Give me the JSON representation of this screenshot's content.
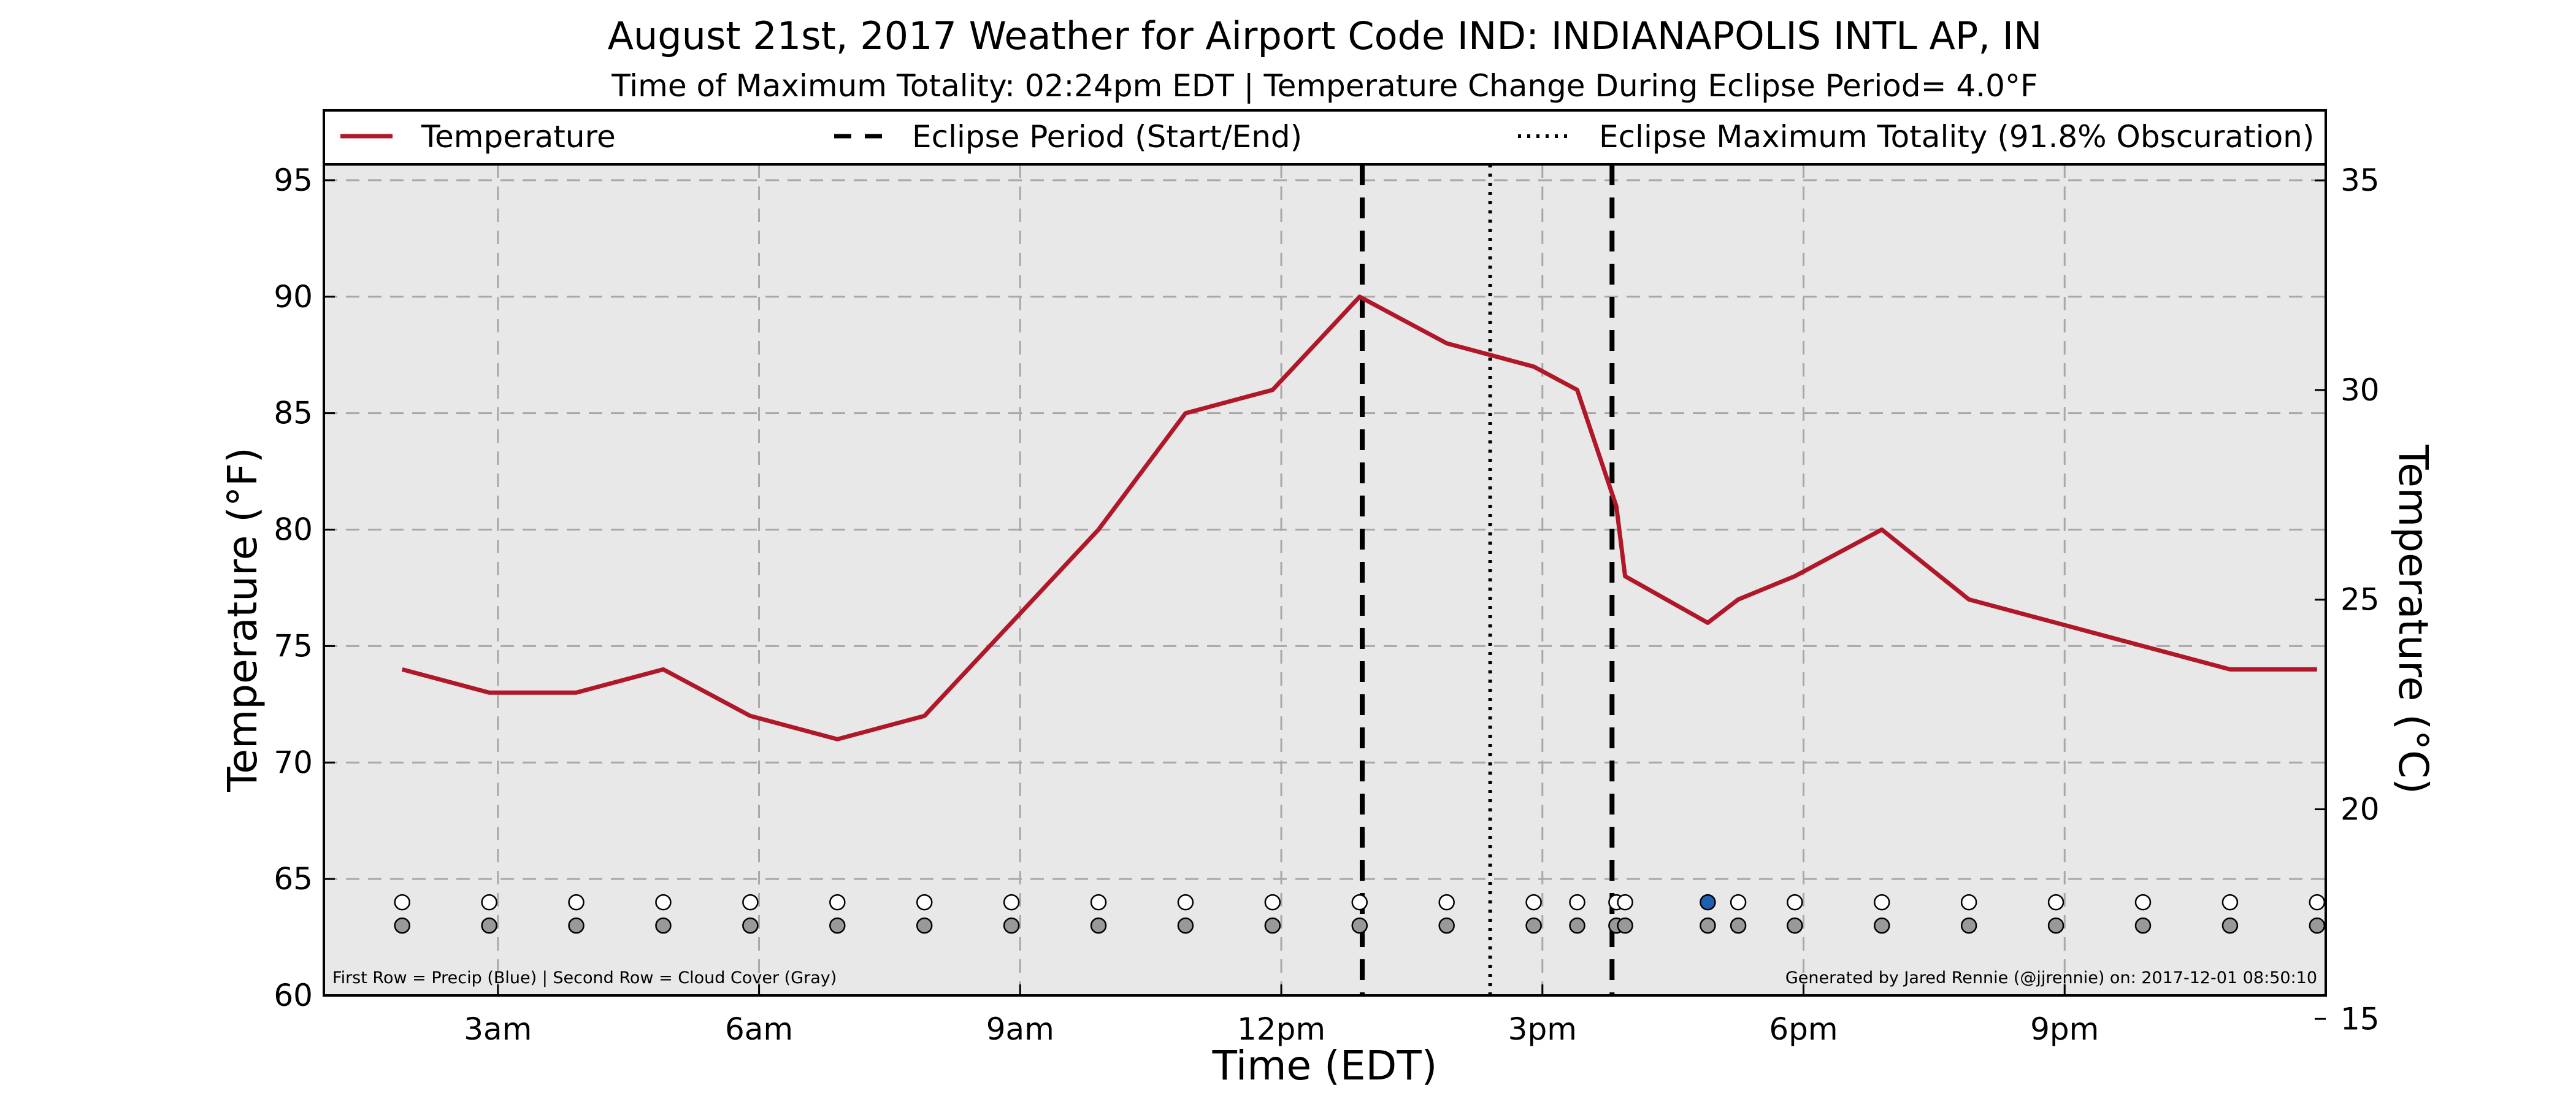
{
  "chart_data": {
    "type": "line",
    "title": "August 21st, 2017 Weather for Airport Code IND: INDIANAPOLIS INTL AP, IN",
    "subtitle": "Time of Maximum Totality: 02:24pm EDT | Temperature Change During Eclipse Period= 4.0°F",
    "xlabel": "Time (EDT)",
    "ylabel": "Temperature (°F)",
    "ylabel_right": "Temperature (°C)",
    "xlim": [
      1,
      24
    ],
    "ylim": [
      60,
      98
    ],
    "ylim_right_celsius": [
      15.56,
      36.67
    ],
    "x_ticks": [
      {
        "x": 3,
        "label": "3am"
      },
      {
        "x": 6,
        "label": "6am"
      },
      {
        "x": 9,
        "label": "9am"
      },
      {
        "x": 12,
        "label": "12pm"
      },
      {
        "x": 15,
        "label": "3pm"
      },
      {
        "x": 18,
        "label": "6pm"
      },
      {
        "x": 21,
        "label": "9pm"
      }
    ],
    "y_ticks": [
      60,
      65,
      70,
      75,
      80,
      85,
      90,
      95
    ],
    "y_ticks_right": [
      15,
      20,
      25,
      30,
      35
    ],
    "grid": true,
    "legend": {
      "position": "top",
      "entries": [
        {
          "label": "Temperature",
          "style": "solid",
          "color": "#b0182a"
        },
        {
          "label": "Eclipse Period (Start/End)",
          "style": "dashed",
          "color": "#000000"
        },
        {
          "label": "Eclipse Maximum Totality (91.8% Obscuration)",
          "style": "dotted",
          "color": "#000000"
        }
      ]
    },
    "series": [
      {
        "name": "Temperature",
        "color": "#b0182a",
        "x": [
          1.9,
          2.9,
          3.9,
          4.9,
          5.9,
          6.9,
          7.9,
          8.9,
          9.9,
          10.9,
          11.9,
          12.9,
          13.9,
          14.9,
          15.4,
          15.85,
          15.95,
          16.9,
          17.25,
          17.9,
          18.9,
          19.9,
          20.9,
          21.9,
          22.9,
          23.9
        ],
        "y": [
          74,
          73,
          73,
          74,
          72,
          71,
          72,
          76,
          80,
          85,
          86,
          90,
          88,
          87,
          86,
          81,
          78,
          76,
          77,
          78,
          80,
          77,
          76,
          75,
          74,
          74
        ]
      }
    ],
    "eclipse_start": 12.93,
    "eclipse_max": 14.4,
    "eclipse_end": 15.8,
    "observation_x": [
      1.9,
      2.9,
      3.9,
      4.9,
      5.9,
      6.9,
      7.9,
      8.9,
      9.9,
      10.9,
      11.9,
      12.9,
      13.9,
      14.9,
      15.4,
      15.85,
      15.95,
      16.9,
      17.25,
      17.9,
      18.9,
      19.9,
      20.9,
      21.9,
      22.9,
      23.9
    ],
    "precip_row_y": 64,
    "cloud_row_y": 63,
    "precip_colors": [
      "#ffffff",
      "#ffffff",
      "#ffffff",
      "#ffffff",
      "#ffffff",
      "#ffffff",
      "#ffffff",
      "#ffffff",
      "#ffffff",
      "#ffffff",
      "#ffffff",
      "#ffffff",
      "#ffffff",
      "#ffffff",
      "#ffffff",
      "#ffffff",
      "#ffffff",
      "#1f5fb0",
      "#ffffff",
      "#ffffff",
      "#ffffff",
      "#ffffff",
      "#ffffff",
      "#ffffff",
      "#ffffff",
      "#ffffff"
    ],
    "cloud_color": "#999999",
    "note_left": "First Row = Precip (Blue) | Second Row = Cloud Cover (Gray)",
    "note_right": "Generated by Jared Rennie (@jjrennie) on: 2017-12-01 08:50:10",
    "background_color": "#e8e8e8"
  }
}
